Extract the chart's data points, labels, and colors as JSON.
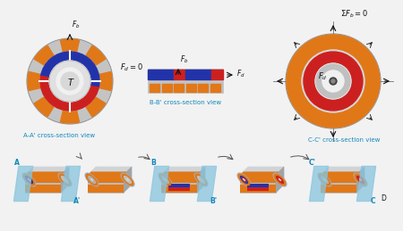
{
  "fig_w": 4.5,
  "fig_h": 2.59,
  "dpi": 100,
  "bg": "#f2f2f2",
  "gray_light": "#c8c8c8",
  "gray_mid": "#aaaaaa",
  "gray_dark": "#888888",
  "gray_body": "#b8bcc0",
  "gray_top": "#d0d4d8",
  "gray_side": "#a0a4a8",
  "orange": "#e07818",
  "red": "#cc2020",
  "blue_dark": "#2233aa",
  "blue_light": "#88ccdd",
  "blue_plane": "#88c4dd",
  "white": "#ffffff",
  "black": "#111111",
  "cyan": "#1188bb",
  "AA_label": "A-A' cross-section view",
  "BB_label": "B-B' cross-section view",
  "CC_label": "C-C' cross-section view"
}
